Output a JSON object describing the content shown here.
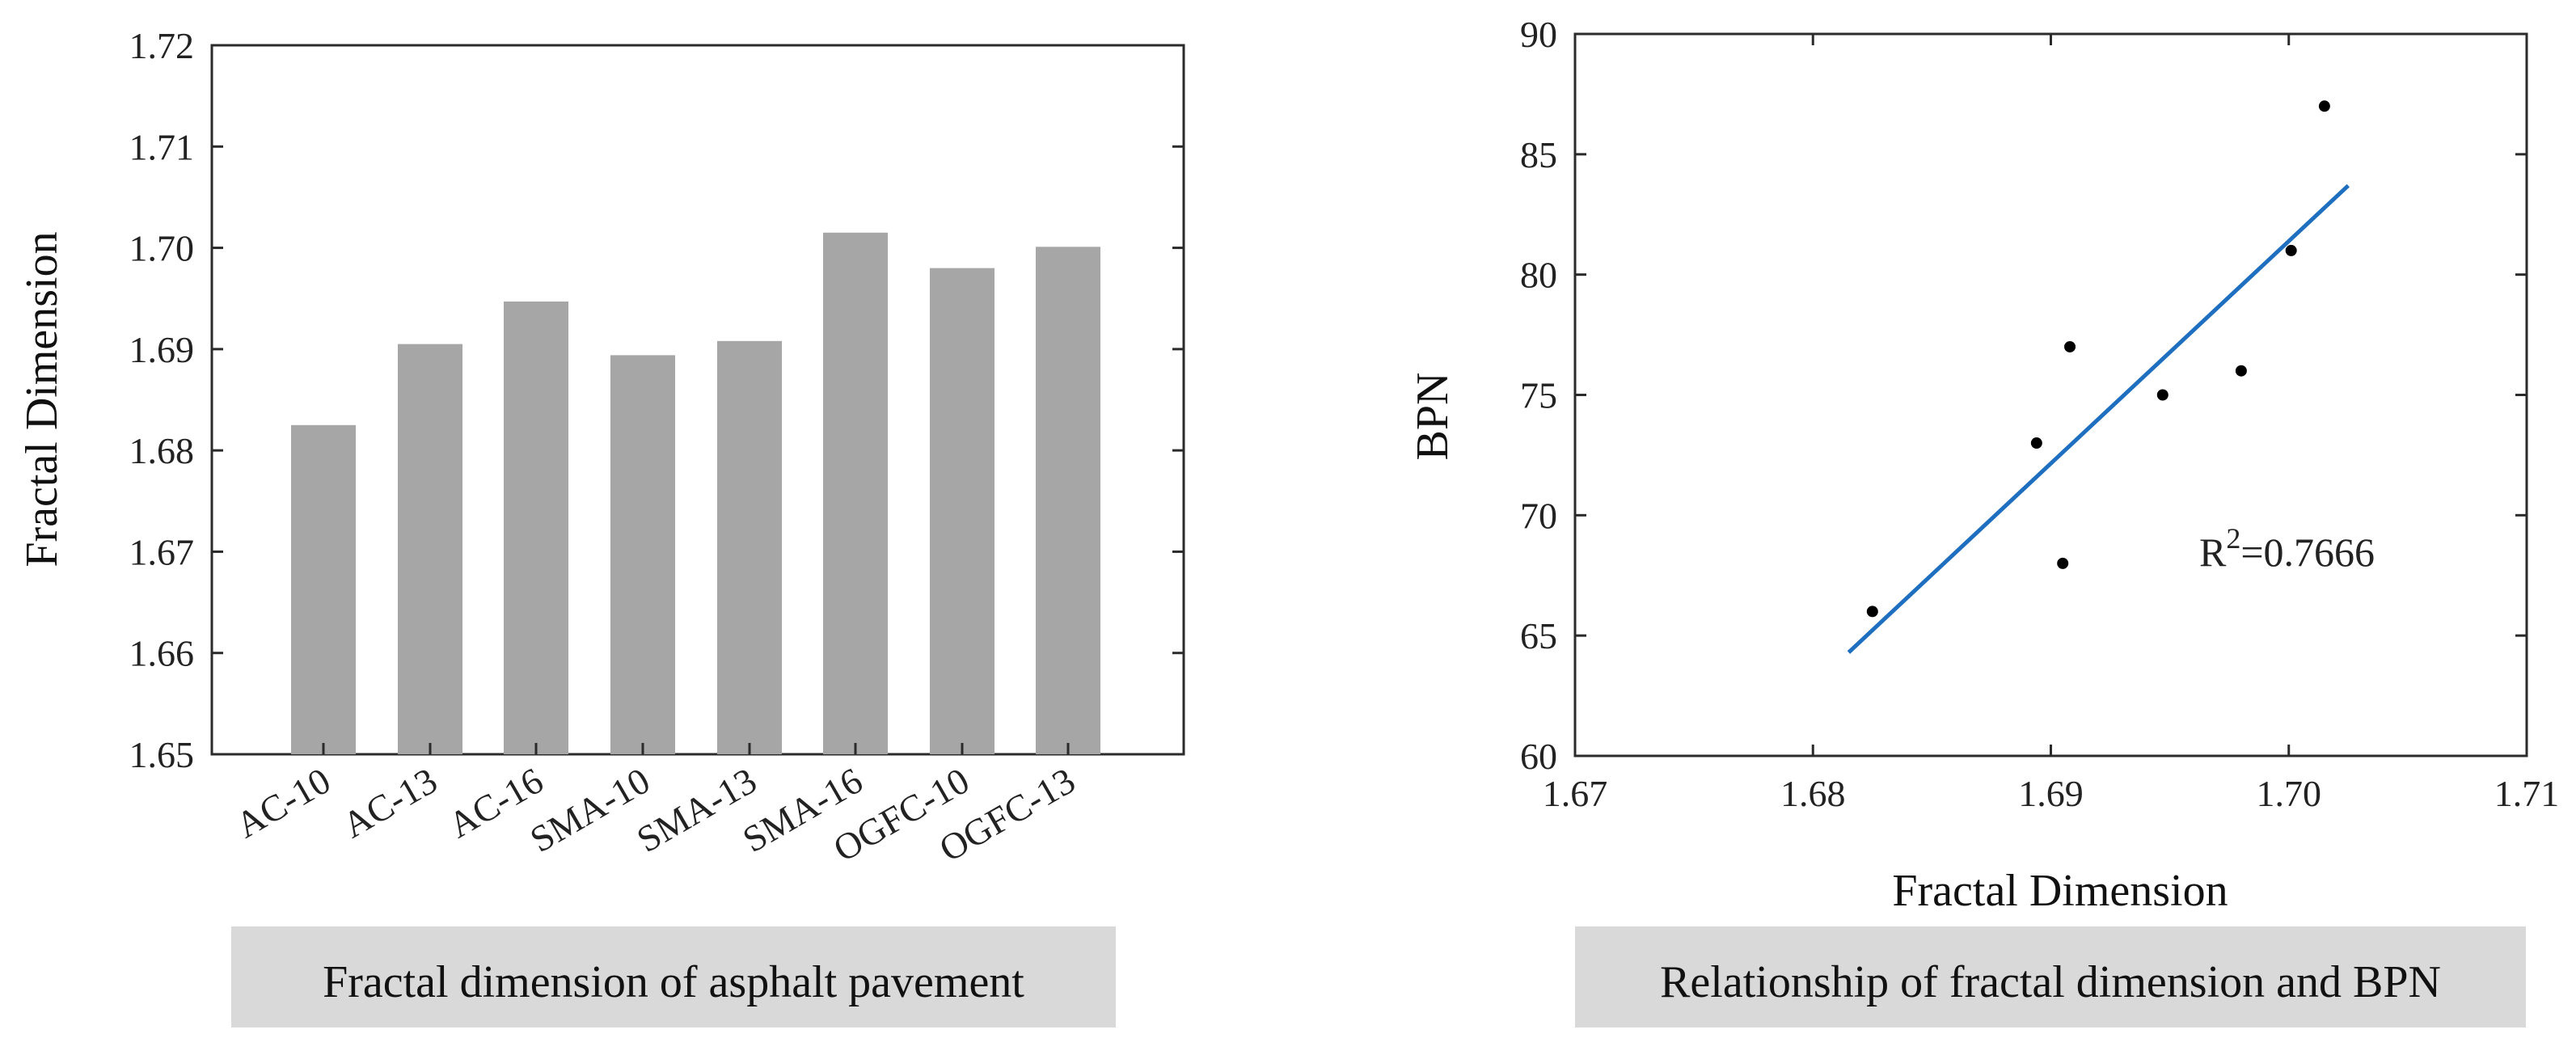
{
  "chart_data": [
    {
      "type": "bar",
      "title": "",
      "caption": "Fractal dimension of asphalt pavement",
      "categories": [
        "AC-10",
        "AC-13",
        "AC-16",
        "SMA-10",
        "SMA-13",
        "SMA-16",
        "OGFC-10",
        "OGFC-13"
      ],
      "values": [
        1.6825,
        1.6905,
        1.6947,
        1.6894,
        1.6908,
        1.7015,
        1.698,
        1.7001
      ],
      "xlabel": "",
      "ylabel": "Fractal Dimension",
      "ylim": [
        1.65,
        1.72
      ],
      "yticks": [
        "1.65",
        "1.66",
        "1.67",
        "1.68",
        "1.69",
        "1.70",
        "1.71",
        "1.72"
      ],
      "grid": false
    },
    {
      "type": "scatter",
      "title": "",
      "caption": "Relationship of fractal dimension and BPN",
      "x": [
        1.6825,
        1.6894,
        1.6905,
        1.6908,
        1.6947,
        1.698,
        1.7001,
        1.7015
      ],
      "y": [
        66,
        73,
        68,
        77,
        75,
        76,
        81,
        87
      ],
      "fit_line": {
        "x": [
          1.6815,
          1.7025
        ],
        "y": [
          64.3,
          83.7
        ]
      },
      "annotation": {
        "base": "R",
        "sup": "2",
        "rest": "=0.7666"
      },
      "xlabel": "Fractal Dimension",
      "ylabel": "BPN",
      "xlim": [
        1.67,
        1.71
      ],
      "ylim": [
        60,
        90
      ],
      "xticks": [
        "1.67",
        "1.68",
        "1.69",
        "1.70",
        "1.71"
      ],
      "yticks": [
        "60",
        "65",
        "70",
        "75",
        "80",
        "85",
        "90"
      ],
      "grid": false
    }
  ]
}
